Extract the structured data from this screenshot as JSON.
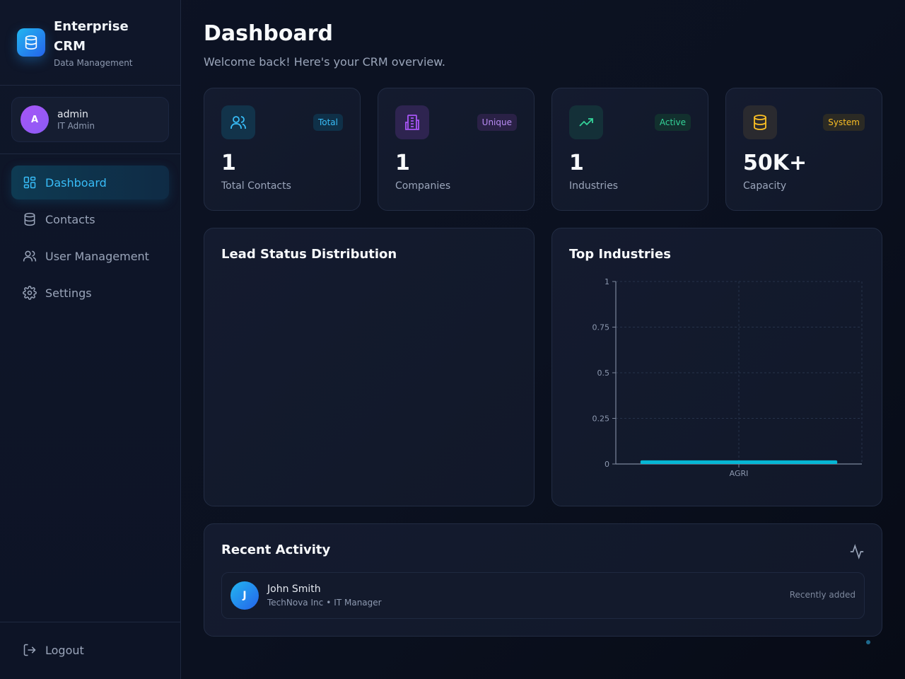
{
  "brand": {
    "title": "Enterprise CRM",
    "subtitle": "Data Management"
  },
  "user": {
    "initial": "A",
    "name": "admin",
    "role": "IT Admin"
  },
  "nav": [
    {
      "label": "Dashboard",
      "icon": "dashboard-grid-icon",
      "active": true
    },
    {
      "label": "Contacts",
      "icon": "database-icon",
      "active": false
    },
    {
      "label": "User Management",
      "icon": "users-icon",
      "active": false
    },
    {
      "label": "Settings",
      "icon": "gear-icon",
      "active": false
    }
  ],
  "logout": {
    "label": "Logout",
    "icon": "logout-icon"
  },
  "header": {
    "title": "Dashboard",
    "subtitle": "Welcome back! Here's your CRM overview."
  },
  "stats": [
    {
      "value": "1",
      "label": "Total Contacts",
      "badge": "Total",
      "icon": "users-icon",
      "color": "#38bdf8"
    },
    {
      "value": "1",
      "label": "Companies",
      "badge": "Unique",
      "icon": "building-icon",
      "color": "#a855f7"
    },
    {
      "value": "1",
      "label": "Industries",
      "badge": "Active",
      "icon": "trending-up-icon",
      "color": "#34d399"
    },
    {
      "value": "50K+",
      "label": "Capacity",
      "badge": "System",
      "icon": "database-icon",
      "color": "#fbbf24"
    }
  ],
  "panels": {
    "lead_status": {
      "title": "Lead Status Distribution"
    },
    "top_industries": {
      "title": "Top Industries"
    }
  },
  "chart_data": {
    "type": "bar",
    "categories": [
      "AGRI"
    ],
    "values": [
      0.02
    ],
    "ylim": [
      0,
      1
    ],
    "yticks": [
      "0",
      "0.25",
      "0.5",
      "0.75",
      "1"
    ],
    "grid": true,
    "bar_color": "#06b6d4"
  },
  "activity": {
    "title": "Recent Activity",
    "items": [
      {
        "initial": "J",
        "name": "John Smith",
        "company": "TechNova Inc",
        "separator": "•",
        "role": "IT Manager",
        "time": "Recently added"
      }
    ]
  }
}
